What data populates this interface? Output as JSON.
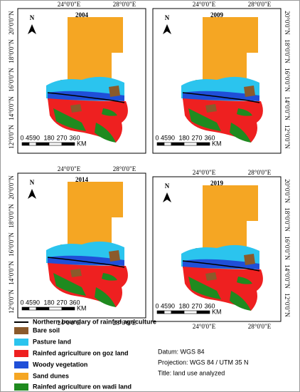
{
  "panels": [
    {
      "year": "2004",
      "north": "N",
      "lon_labels": [
        "24°0'0\"E",
        "28°0'0\"E"
      ],
      "lat_labels": [
        "20°0'0\"N",
        "18°0'0\"N",
        "16°0'0\"N",
        "14°0'0\"N",
        "12°0'0\"N"
      ],
      "scale": [
        "0",
        "45",
        "90",
        "180",
        "270",
        "360"
      ],
      "scale_unit": "KM"
    },
    {
      "year": "2009",
      "north": "N",
      "lon_labels": [
        "24°0'0\"E",
        "28°0'0\"E"
      ],
      "lat_labels": [
        "20°0'0\"N",
        "18°0'0\"N",
        "16°0'0\"N",
        "14°0'0\"N",
        "12°0'0\"N"
      ],
      "scale": [
        "0",
        "45",
        "90",
        "180",
        "270",
        "360"
      ],
      "scale_unit": "KM"
    },
    {
      "year": "2014",
      "north": "N",
      "lon_labels": [
        "24°0'0\"E",
        "28°0'0\"E"
      ],
      "lat_labels": [
        "20°0'0\"N",
        "18°0'0\"N",
        "16°0'0\"N",
        "14°0'0\"N",
        "12°0'0\"N"
      ],
      "scale": [
        "0",
        "45",
        "90",
        "180",
        "270",
        "360"
      ],
      "scale_unit": "KM"
    },
    {
      "year": "2019",
      "north": "N",
      "lon_labels": [
        "24°0'0\"E",
        "28°0'0\"E"
      ],
      "lat_labels": [
        "20°0'0\"N",
        "18°0'0\"N",
        "16°0'0\"N",
        "14°0'0\"N",
        "12°0'0\"N"
      ],
      "scale": [
        "0",
        "45",
        "90",
        "180",
        "270",
        "360"
      ],
      "scale_unit": "KM"
    }
  ],
  "legend": {
    "items": [
      {
        "label": "Northern boundary of rainfed agriculture",
        "color": "#000000"
      },
      {
        "label": "Bare soil",
        "color": "#8b5a2b"
      },
      {
        "label": "Pasture land",
        "color": "#2bc4ee"
      },
      {
        "label": "Rainfed agriculture on goz land",
        "color": "#ee2020"
      },
      {
        "label": "Woody vegetation",
        "color": "#1f4fd8"
      },
      {
        "label": "Sand dunes",
        "color": "#f5a623"
      },
      {
        "label": "Rainfed agriculture on wadi land",
        "color": "#1f8a1f"
      }
    ]
  },
  "info": [
    "Datum: WGS 84",
    "Projection: WGS 84 / UTM 35 N",
    "Title: land use analyzed"
  ]
}
